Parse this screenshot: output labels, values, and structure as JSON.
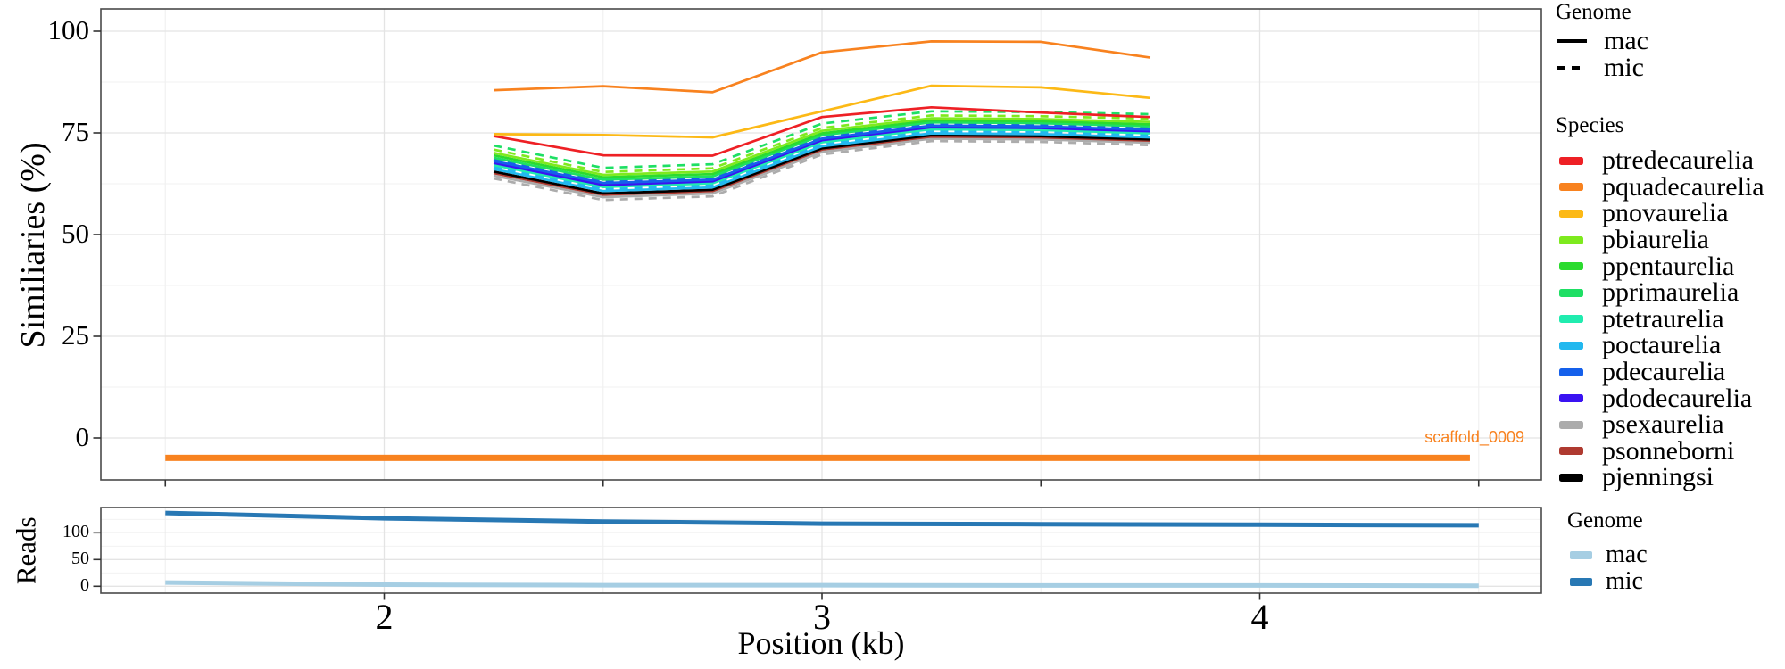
{
  "chart_data": [
    {
      "id": "similarity-panel",
      "type": "line",
      "ylabel": "Similiaries (%)",
      "xlabel": "Position (kb)",
      "ylim": [
        -10.3,
        105.5
      ],
      "xlim": [
        1.35,
        4.64
      ],
      "grid": true,
      "axes": {
        "y_major_ticks": [
          0,
          25,
          50,
          75,
          100
        ],
        "y_minor_gridlines": [
          12.5,
          37.5,
          62.5,
          87.5
        ],
        "x_major_gridlines": [
          2,
          3,
          4
        ],
        "x_minor_gridlines": [
          1.5,
          2.5,
          3.5,
          4.5
        ],
        "x_tick_marks": [
          1.5,
          2.5,
          3.5,
          4.5
        ]
      },
      "x": [
        2.25,
        2.5,
        2.75,
        3.0,
        3.25,
        3.5,
        3.75
      ],
      "series": [
        {
          "species": "pquadecaurelia",
          "genome": "mac",
          "color": "#F8821F",
          "values": [
            85.5,
            86.5,
            85.0,
            94.8,
            97.5,
            97.4,
            93.5
          ]
        },
        {
          "species": "pnovaurelia",
          "genome": "mac",
          "color": "#FCB916",
          "values": [
            74.7,
            74.5,
            73.9,
            80.3,
            86.6,
            86.2,
            83.6
          ]
        },
        {
          "species": "ptredecaurelia",
          "genome": "mac",
          "color": "#EE2025",
          "values": [
            74.2,
            69.5,
            69.4,
            78.9,
            81.3,
            80.0,
            78.9
          ]
        },
        {
          "species": "pprimaurelia",
          "genome": "mic",
          "color": "#1EDF64",
          "values": [
            71.9,
            66.4,
            67.3,
            77.3,
            80.3,
            80.1,
            79.6
          ]
        },
        {
          "species": "pbiaurelia",
          "genome": "mic",
          "color": "#7EEA1E",
          "values": [
            70.9,
            65.4,
            66.3,
            76.2,
            79.3,
            79.1,
            78.5
          ]
        },
        {
          "species": "pbiaurelia",
          "genome": "mac",
          "color": "#7EEA1E",
          "values": [
            70.1,
            64.7,
            65.5,
            75.5,
            78.6,
            78.4,
            77.7
          ]
        },
        {
          "species": "ppentaurelia",
          "genome": "mac",
          "color": "#2BDB2F",
          "values": [
            69.5,
            64.1,
            64.9,
            74.9,
            78.1,
            77.9,
            77.1
          ]
        },
        {
          "species": "pprimaurelia",
          "genome": "mac",
          "color": "#1EDF64",
          "values": [
            68.9,
            63.5,
            64.3,
            74.4,
            77.6,
            77.4,
            76.6
          ]
        },
        {
          "species": "pdecaurelia",
          "genome": "mic",
          "color": "#1560EB",
          "values": [
            68.5,
            63.1,
            63.9,
            74.0,
            77.2,
            77.0,
            76.2
          ]
        },
        {
          "species": "pdecaurelia",
          "genome": "mac",
          "color": "#1560EB",
          "values": [
            68.1,
            62.7,
            63.5,
            73.6,
            76.8,
            76.6,
            75.8
          ]
        },
        {
          "species": "pdodecaurelia",
          "genome": "mac",
          "color": "#3A13F2",
          "values": [
            67.6,
            62.2,
            63.1,
            73.2,
            76.4,
            76.2,
            75.4
          ]
        },
        {
          "species": "ptetraurelia",
          "genome": "mac",
          "color": "#20ECAF",
          "values": [
            67.1,
            61.7,
            62.6,
            72.7,
            75.9,
            75.7,
            74.9
          ]
        },
        {
          "species": "poctaurelia",
          "genome": "mic",
          "color": "#22B8EF",
          "values": [
            66.6,
            61.2,
            62.1,
            72.2,
            75.4,
            75.2,
            74.4
          ]
        },
        {
          "species": "poctaurelia",
          "genome": "mac",
          "color": "#22B8EF",
          "values": [
            66.1,
            60.7,
            61.6,
            71.7,
            74.9,
            74.7,
            73.9
          ]
        },
        {
          "species": "pjenningsi",
          "genome": "mac",
          "color": "#000000",
          "values": [
            65.5,
            60.1,
            61.0,
            71.2,
            74.4,
            74.2,
            73.4
          ]
        },
        {
          "species": "psonneborni",
          "genome": "mac",
          "color": "#AF3A30",
          "values": [
            65.1,
            59.8,
            60.7,
            70.9,
            74.1,
            73.9,
            73.1
          ]
        },
        {
          "species": "psexaurelia",
          "genome": "mac",
          "color": "#ACACAC",
          "values": [
            64.5,
            59.2,
            60.1,
            70.3,
            73.6,
            73.4,
            72.6
          ]
        },
        {
          "species": "psexaurelia",
          "genome": "mic",
          "color": "#ACACAC",
          "values": [
            63.8,
            58.5,
            59.4,
            69.7,
            73.0,
            72.8,
            72.0
          ]
        }
      ],
      "scaffold": {
        "label": "scaffold_0009",
        "color": "#F8821F",
        "x_start": 1.5,
        "x_end": 4.48,
        "y": -4.9
      }
    },
    {
      "id": "reads-panel",
      "type": "line",
      "ylabel": "Reads",
      "ylim": [
        -12.8,
        145.5
      ],
      "grid": true,
      "axes": {
        "y_major_ticks": [
          0,
          50,
          100
        ],
        "y_minor_gridlines": [
          25,
          75,
          125
        ],
        "x_major_gridlines": [
          2,
          3,
          4
        ],
        "x_minor_gridlines": [
          1.5,
          2.5,
          3.5,
          4.5
        ],
        "x_labeled_ticks": [
          2,
          3,
          4
        ]
      },
      "x": [
        1.5,
        2.0,
        2.5,
        3.0,
        3.5,
        4.0,
        4.5
      ],
      "series": [
        {
          "name": "mic",
          "color": "#2878B4",
          "values": [
            137,
            127,
            121,
            117,
            116,
            115,
            114
          ]
        },
        {
          "name": "mac",
          "color": "#A6CEE3",
          "values": [
            7,
            3,
            2,
            2,
            1.5,
            1.5,
            1
          ]
        }
      ]
    }
  ],
  "legends": {
    "genome_lines": {
      "title": "Genome",
      "items": [
        {
          "label": "mac",
          "style": "solid",
          "color": "#000000"
        },
        {
          "label": "mic",
          "style": "dashed",
          "color": "#000000"
        }
      ]
    },
    "species": {
      "title": "Species",
      "items": [
        {
          "label": "ptredecaurelia",
          "color": "#EE2025"
        },
        {
          "label": "pquadecaurelia",
          "color": "#F8821F"
        },
        {
          "label": "pnovaurelia",
          "color": "#FCB916"
        },
        {
          "label": "pbiaurelia",
          "color": "#7EEA1E"
        },
        {
          "label": "ppentaurelia",
          "color": "#2BDB2F"
        },
        {
          "label": "pprimaurelia",
          "color": "#1EDF64"
        },
        {
          "label": "ptetraurelia",
          "color": "#20ECAF"
        },
        {
          "label": "poctaurelia",
          "color": "#22B8EF"
        },
        {
          "label": "pdecaurelia",
          "color": "#1560EB"
        },
        {
          "label": "pdodecaurelia",
          "color": "#3A13F2"
        },
        {
          "label": "psexaurelia",
          "color": "#ACACAC"
        },
        {
          "label": "psonneborni",
          "color": "#AF3A30"
        },
        {
          "label": "pjenningsi",
          "color": "#000000"
        }
      ]
    },
    "genome_reads": {
      "title": "Genome",
      "items": [
        {
          "label": "mac",
          "color": "#A6CEE3"
        },
        {
          "label": "mic",
          "color": "#2878B4"
        }
      ]
    }
  }
}
